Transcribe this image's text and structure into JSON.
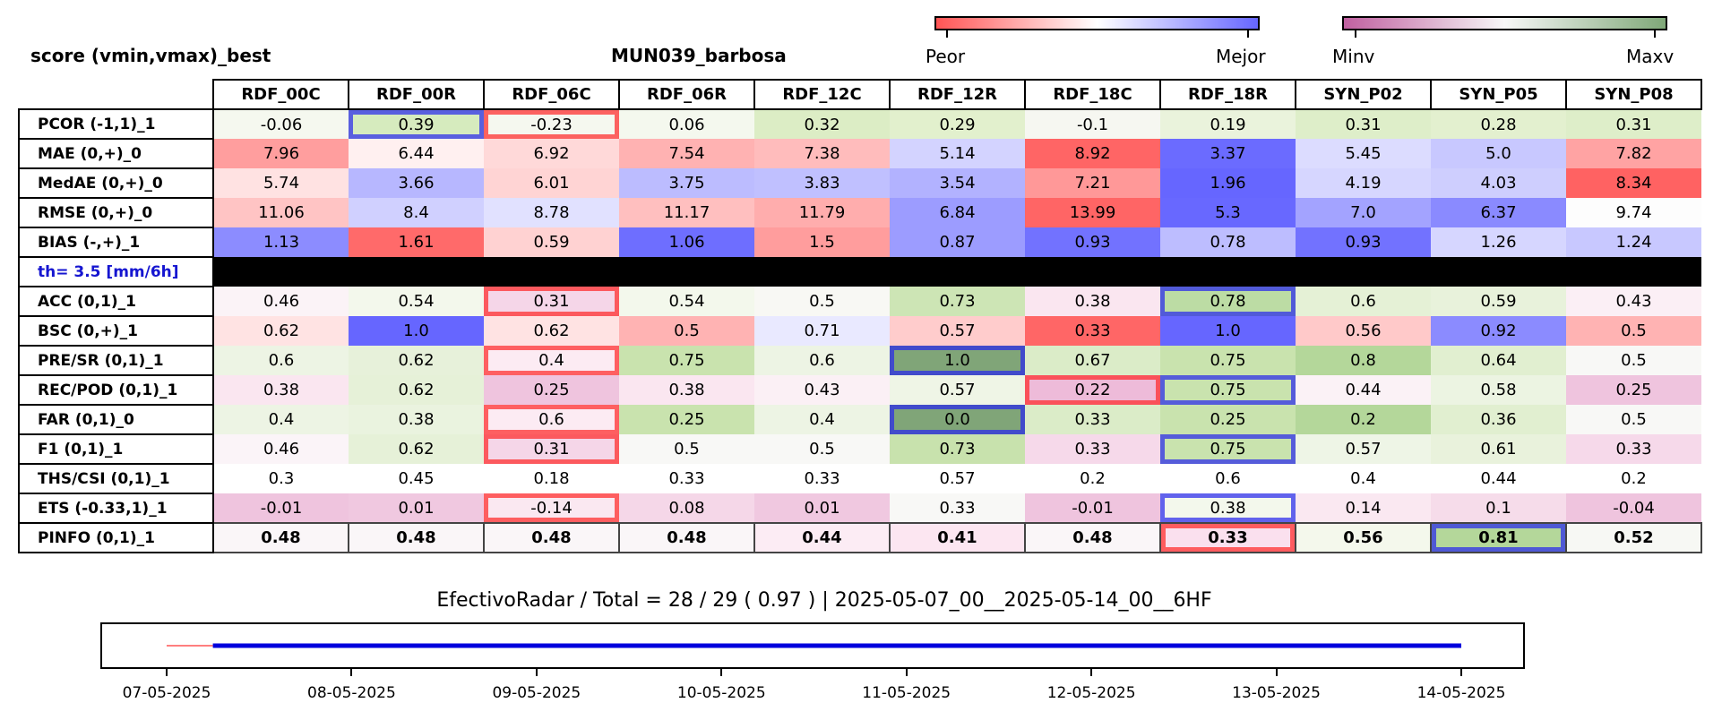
{
  "header": {
    "left_title": "score (vmin,vmax)_best",
    "station": "MUN039_barbosa"
  },
  "colorbars": {
    "diverging": {
      "low_label": "Peor",
      "high_label": "Mejor",
      "colors": [
        "#ff5555",
        "#ffffff",
        "#6666ff"
      ]
    },
    "sequential": {
      "low_label": "Minv",
      "high_label": "Maxv",
      "colors": [
        "#c060a0",
        "#f7f7f7",
        "#7fa878"
      ]
    }
  },
  "chart_data": {
    "type": "table",
    "columns": [
      "RDF_00C",
      "RDF_00R",
      "RDF_06C",
      "RDF_06R",
      "RDF_12C",
      "RDF_12R",
      "RDF_18C",
      "RDF_18R",
      "SYN_P02",
      "SYN_P05",
      "SYN_P08"
    ],
    "rows": [
      {
        "label": "PCOR (-1,1)_1",
        "values": [
          "-0.06",
          "0.39",
          "-0.23",
          "0.06",
          "0.32",
          "0.29",
          "-0.1",
          "0.19",
          "0.31",
          "0.28",
          "0.31"
        ],
        "colors": [
          "#f5f8ef",
          "#d6ebbe",
          "#f5f8ef",
          "#f4f8ee",
          "#dcedc5",
          "#e2f0cd",
          "#f6f7f1",
          "#eaf3dc",
          "#deeec9",
          "#e3f0cf",
          "#deeec9"
        ],
        "highlight": {
          "1": "blue",
          "2": "red"
        }
      },
      {
        "label": "MAE (0,+)_0",
        "values": [
          "7.96",
          "6.44",
          "6.92",
          "7.54",
          "7.38",
          "5.14",
          "8.92",
          "3.37",
          "5.45",
          "5.0",
          "7.82"
        ],
        "colors": [
          "#ff9e9e",
          "#fff0f0",
          "#ffd9d9",
          "#ffb2b2",
          "#ffbcbc",
          "#d3d3ff",
          "#ff6565",
          "#6b6bff",
          "#dcdcff",
          "#c8c8ff",
          "#ffa3a3"
        ]
      },
      {
        "label": "MedAE (0,+)_0",
        "values": [
          "5.74",
          "3.66",
          "6.01",
          "3.75",
          "3.83",
          "3.54",
          "7.21",
          "1.96",
          "4.19",
          "4.03",
          "8.34"
        ],
        "colors": [
          "#ffe2e2",
          "#b7b7ff",
          "#ffd4d4",
          "#bcbcff",
          "#c0c0ff",
          "#b2b2ff",
          "#ff9898",
          "#6666ff",
          "#d6d6ff",
          "#cecefe",
          "#ff6262"
        ]
      },
      {
        "label": "RMSE (0,+)_0",
        "values": [
          "11.06",
          "8.4",
          "8.78",
          "11.17",
          "11.79",
          "6.84",
          "13.99",
          "5.3",
          "7.0",
          "6.37",
          "9.74"
        ],
        "colors": [
          "#ffc4c4",
          "#d0d0ff",
          "#e1e1ff",
          "#ffbfbf",
          "#ffadad",
          "#9c9cff",
          "#ff6565",
          "#6868ff",
          "#a3a3ff",
          "#8a8aff",
          "#fdfdfd"
        ]
      },
      {
        "label": "BIAS (-,+)_1",
        "values": [
          "1.13",
          "1.61",
          "0.59",
          "1.06",
          "1.5",
          "0.87",
          "0.93",
          "0.78",
          "0.93",
          "1.26",
          "1.24"
        ],
        "colors": [
          "#8c8cff",
          "#ff6a6a",
          "#ffd2d2",
          "#6e6eff",
          "#ff9d9d",
          "#9c9cff",
          "#7272ff",
          "#bdbdff",
          "#7272ff",
          "#d6d6ff",
          "#c8c8ff"
        ]
      },
      {
        "label": "th= 3.5 [mm/6h]",
        "separator": true
      },
      {
        "label": "ACC (0,1)_1",
        "values": [
          "0.46",
          "0.54",
          "0.31",
          "0.54",
          "0.5",
          "0.73",
          "0.38",
          "0.78",
          "0.6",
          "0.59",
          "0.43"
        ],
        "colors": [
          "#fbf3f7",
          "#f3f8ec",
          "#f5d6e8",
          "#f3f8ec",
          "#f8f8f4",
          "#cde5b5",
          "#fae6f0",
          "#bcdca4",
          "#e5f1d6",
          "#e8f2db",
          "#fbeff5"
        ],
        "highlight": {
          "2": "red",
          "7": "blue"
        }
      },
      {
        "label": "BSC (0,+)_1",
        "values": [
          "0.62",
          "1.0",
          "0.62",
          "0.5",
          "0.71",
          "0.57",
          "0.33",
          "1.0",
          "0.56",
          "0.92",
          "0.5"
        ],
        "colors": [
          "#ffe3e3",
          "#6666ff",
          "#ffe3e3",
          "#ffb3b3",
          "#e9e9ff",
          "#ffcccc",
          "#ff6666",
          "#6666ff",
          "#ffc9c9",
          "#8b8bff",
          "#ffb3b3"
        ]
      },
      {
        "label": "PRE/SR (0,1)_1",
        "values": [
          "0.6",
          "0.62",
          "0.4",
          "0.75",
          "0.6",
          "1.0",
          "0.67",
          "0.75",
          "0.8",
          "0.64",
          "0.5"
        ],
        "colors": [
          "#edf4e4",
          "#e7f1da",
          "#fcebf3",
          "#c9e3ae",
          "#edf4e4",
          "#80a578",
          "#dbecc8",
          "#c9e3ae",
          "#b4d79a",
          "#e1efd0",
          "#f8f8f6"
        ],
        "highlight": {
          "2": "red",
          "5": "blue"
        }
      },
      {
        "label": "REC/POD (0,1)_1",
        "values": [
          "0.38",
          "0.62",
          "0.25",
          "0.38",
          "0.43",
          "0.57",
          "0.22",
          "0.75",
          "0.44",
          "0.58",
          "0.25"
        ],
        "colors": [
          "#fae6f0",
          "#e6f1d8",
          "#efc4de",
          "#fae6f0",
          "#fbf0f5",
          "#eff5e6",
          "#eebbd9",
          "#c9e3ae",
          "#fbf2f6",
          "#ecf4e2",
          "#efc4de"
        ],
        "highlight": {
          "6": "red",
          "7": "blue"
        }
      },
      {
        "label": "FAR (0,1)_0",
        "values": [
          "0.4",
          "0.38",
          "0.6",
          "0.25",
          "0.4",
          "0.0",
          "0.33",
          "0.25",
          "0.2",
          "0.36",
          "0.5"
        ],
        "colors": [
          "#edf4e4",
          "#eaf3df",
          "#fcebf3",
          "#c9e3ae",
          "#edf4e4",
          "#80a578",
          "#dbecc8",
          "#c9e3ae",
          "#b4d79a",
          "#e1efd0",
          "#f8f8f6"
        ],
        "highlight": {
          "2": "red",
          "5": "blue"
        }
      },
      {
        "label": "F1 (0,1)_1",
        "values": [
          "0.46",
          "0.62",
          "0.31",
          "0.5",
          "0.5",
          "0.73",
          "0.33",
          "0.75",
          "0.57",
          "0.61",
          "0.33"
        ],
        "colors": [
          "#fbf4f8",
          "#e6f1d8",
          "#f5d6e8",
          "#f8f8f6",
          "#f8f8f6",
          "#c8e2ad",
          "#f6d9ea",
          "#c9e3ae",
          "#eef5e6",
          "#e9f2dc",
          "#f6d9ea"
        ],
        "highlight": {
          "2": "red",
          "7": "blue"
        }
      },
      {
        "label": "THS/CSI (0,1)_1",
        "values": [
          "0.3",
          "0.45",
          "0.18",
          "0.33",
          "0.33",
          "0.57",
          "0.2",
          "0.6",
          "0.4",
          "0.44",
          "0.2"
        ],
        "colors": [
          "#ffffff",
          "#ffffff",
          "#ffffff",
          "#ffffff",
          "#ffffff",
          "#ffffff",
          "#ffffff",
          "#ffffff",
          "#ffffff",
          "#ffffff",
          "#ffffff"
        ]
      },
      {
        "label": "ETS (-0.33,1)_1",
        "values": [
          "-0.01",
          "0.01",
          "-0.14",
          "0.08",
          "0.01",
          "0.33",
          "-0.01",
          "0.38",
          "0.14",
          "0.1",
          "-0.04"
        ],
        "colors": [
          "#efc4de",
          "#f0c8e0",
          "#fae8f1",
          "#f5d7e8",
          "#f0c8e0",
          "#f8f8f6",
          "#efc4de",
          "#f3f8ec",
          "#fae8f1",
          "#f6dcea",
          "#efc4de"
        ],
        "highlight": {
          "2": "red",
          "7": "blue"
        }
      },
      {
        "label": "PINFO (0,1)_1",
        "values": [
          "0.48",
          "0.48",
          "0.48",
          "0.48",
          "0.44",
          "0.41",
          "0.48",
          "0.33",
          "0.56",
          "0.81",
          "0.52"
        ],
        "colors": [
          "#faf6f8",
          "#faf6f8",
          "#faf6f8",
          "#faf6f8",
          "#fcecf4",
          "#fce6f1",
          "#faf6f8",
          "#fae0ee",
          "#f4f8ec",
          "#b4d79a",
          "#f7f8f4"
        ],
        "highlight": {
          "7": "red",
          "9": "blue"
        },
        "bold": true
      }
    ]
  },
  "summary_line": "EfectivoRadar / Total  =  28 / 29 ( 0.97 ) | 2025-05-07_00__2025-05-14_00__6HF",
  "timeline": {
    "dates": [
      "07-05-2025",
      "08-05-2025",
      "09-05-2025",
      "10-05-2025",
      "11-05-2025",
      "12-05-2025",
      "13-05-2025",
      "14-05-2025"
    ],
    "missing_segment": {
      "from": 0,
      "to": 0.25,
      "color": "#ff5555"
    },
    "valid_segment": {
      "from": 0.25,
      "to": 7,
      "color": "#0000dd"
    }
  }
}
